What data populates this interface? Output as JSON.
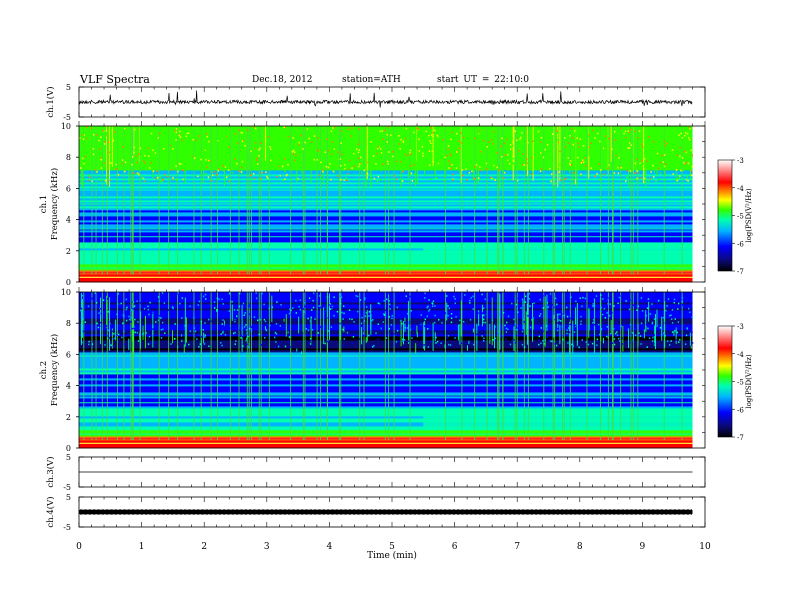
{
  "header": {
    "title": "VLF Spectra",
    "date": "Dec.18, 2012",
    "station": "station=ATH",
    "start": "start UT = 22:10:0"
  },
  "colors": {
    "colormap": [
      "#000000",
      "#0a0a7a",
      "#0000ff",
      "#00b4ff",
      "#00ffb0",
      "#30ff00",
      "#ffff00",
      "#ff8000",
      "#ff0000",
      "#ff8080",
      "#ffffff"
    ]
  },
  "chart_data": [
    {
      "type": "line",
      "name": "ch1",
      "ylabel": "ch.1(V)",
      "ylim": [
        -5,
        5
      ],
      "y_ticklabels": [
        "5",
        "-5"
      ],
      "xlim": [
        0,
        10
      ],
      "trace_mean": 0,
      "note_trace": "noisy signal near 0 V with sparse spikes"
    },
    {
      "type": "heatmap",
      "name": "ch1-spectrogram",
      "ylabel": "ch.1\nFrequency (kHz)",
      "ylim": [
        0,
        10
      ],
      "y_ticklabels": [
        "0",
        "2",
        "4",
        "6",
        "8",
        "10"
      ],
      "xlim": [
        0,
        9.8
      ],
      "colorbar": {
        "label": "log(PSD(V²/Hz)",
        "ticks": [
          "-3",
          "-4",
          "-5",
          "-6",
          "-7"
        ],
        "range": [
          -7,
          -3
        ]
      }
    },
    {
      "type": "heatmap",
      "name": "ch2-spectrogram",
      "ylabel": "ch.2\nFrequency (kHz)",
      "ylim": [
        0,
        10
      ],
      "y_ticklabels": [
        "0",
        "2",
        "4",
        "6",
        "8",
        "10"
      ],
      "xlim": [
        0,
        9.8
      ],
      "colorbar": {
        "label": "log(PSD(V²/Hz)",
        "ticks": [
          "-3",
          "-4",
          "-5",
          "-6",
          "-7"
        ],
        "range": [
          -7,
          -3
        ]
      }
    },
    {
      "type": "line",
      "name": "ch3",
      "ylabel": "ch.3(V)",
      "ylim": [
        -5,
        5
      ],
      "y_ticklabels": [
        "5",
        "-5"
      ],
      "trace_mean": 0
    },
    {
      "type": "line",
      "name": "ch4",
      "ylabel": "ch.4(V)",
      "ylim": [
        -5,
        5
      ],
      "y_ticklabels": [
        "5",
        "-5"
      ],
      "trace_mean": 0
    }
  ],
  "xaxis": {
    "label": "Time (min)",
    "ticks": [
      "0",
      "1",
      "2",
      "3",
      "4",
      "5",
      "6",
      "7",
      "8",
      "9",
      "10"
    ],
    "range": [
      0,
      10
    ]
  }
}
